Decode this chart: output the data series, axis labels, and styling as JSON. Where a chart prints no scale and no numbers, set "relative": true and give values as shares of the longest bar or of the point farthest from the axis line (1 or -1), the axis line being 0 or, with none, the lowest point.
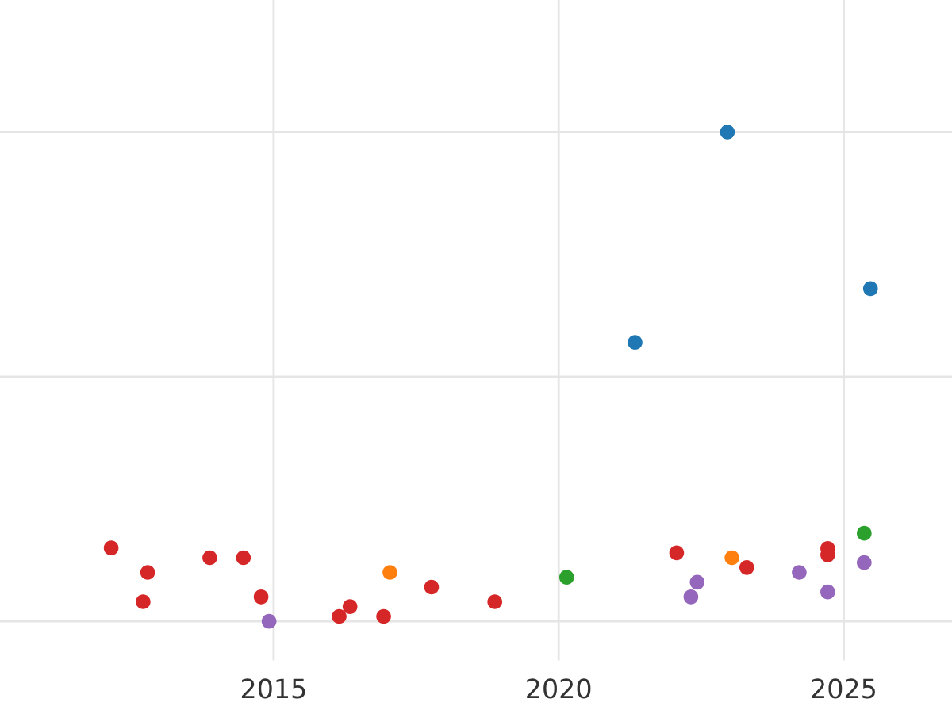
{
  "chart_data": {
    "type": "scatter",
    "relative": true,
    "xlim": [
      2010.2,
      2026.9
    ],
    "xticks": [
      2015,
      2020,
      2025
    ],
    "grid": true,
    "marker": "circle",
    "series": [
      {
        "color": "#d62728",
        "x": [
          2012.15,
          2012.79,
          2012.71,
          2013.88,
          2014.47,
          2014.78,
          2016.15,
          2016.34,
          2016.93,
          2017.77,
          2018.88,
          2022.07,
          2023.3,
          2024.72,
          2024.72
        ],
        "values": [
          0.15,
          0.1,
          0.04,
          0.13,
          0.13,
          0.05,
          0.01,
          0.03,
          0.01,
          0.07,
          0.04,
          0.14,
          0.11,
          0.149,
          0.136
        ]
      },
      {
        "color": "#9467bd",
        "x": [
          2014.92,
          2022.32,
          2022.43,
          2024.22,
          2024.72,
          2025.36
        ],
        "values": [
          0,
          0.05,
          0.08,
          0.1,
          0.06,
          0.12
        ]
      },
      {
        "color": "#ff7f0e",
        "x": [
          2017.04,
          2023.04
        ],
        "values": [
          0.1,
          0.13
        ]
      },
      {
        "color": "#2ca02c",
        "x": [
          2020.14,
          2025.36
        ],
        "values": [
          0.09,
          0.18
        ]
      },
      {
        "color": "#1f77b4",
        "x": [
          2022.96,
          2021.34,
          2025.47
        ],
        "values": [
          1.0,
          0.57,
          0.68
        ]
      }
    ]
  }
}
